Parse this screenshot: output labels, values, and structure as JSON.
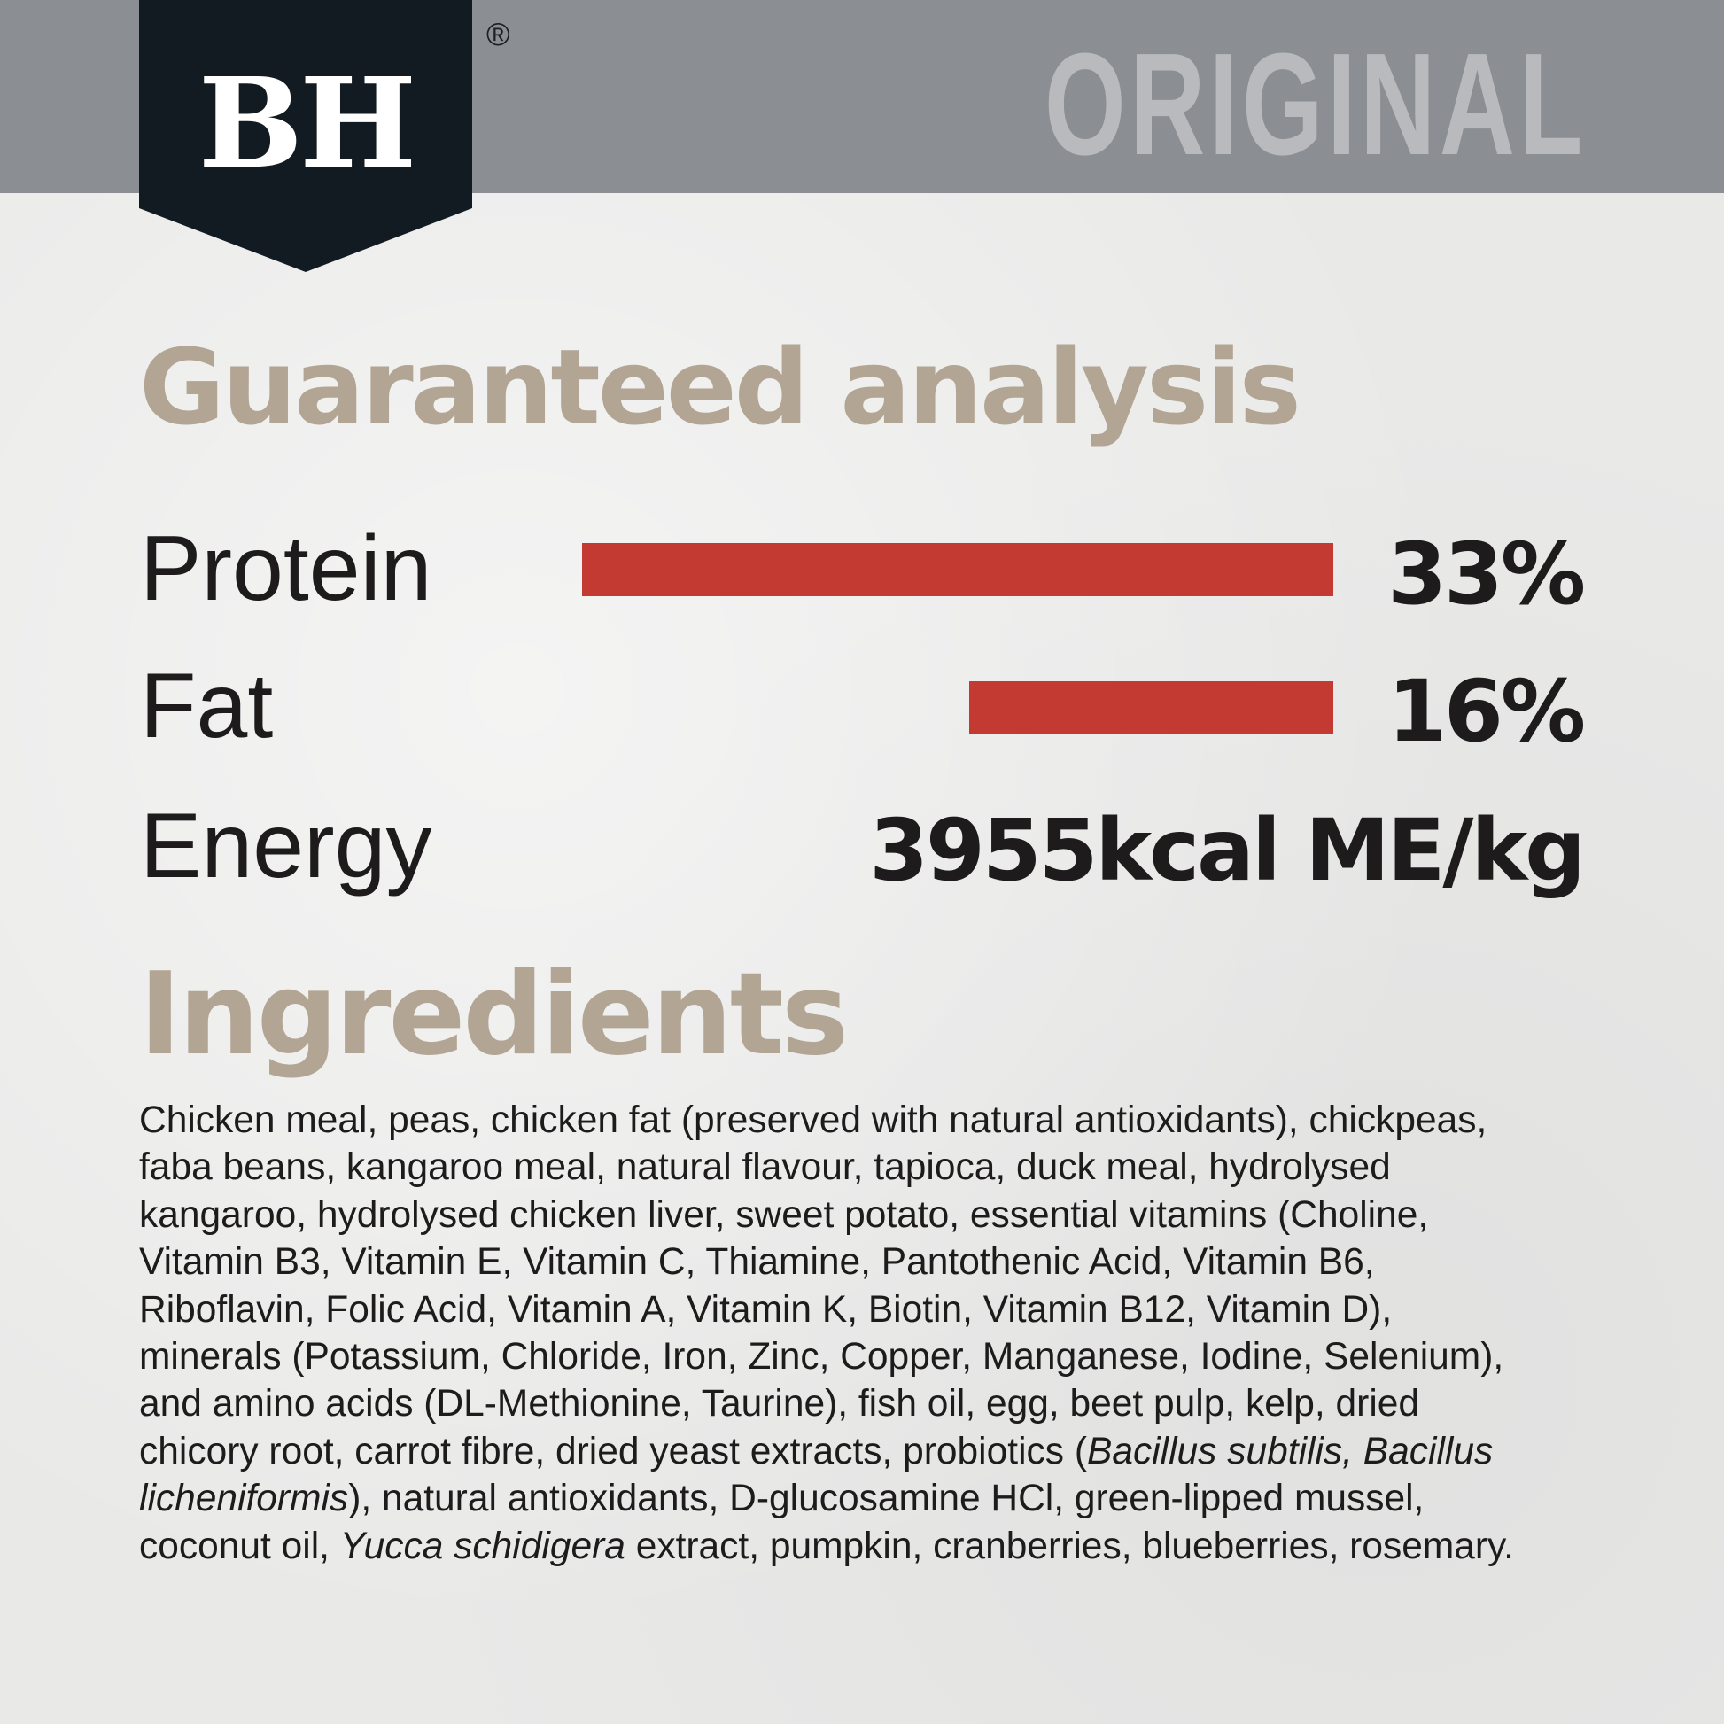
{
  "brand": {
    "logo_text": "BH",
    "registered_mark": "®",
    "variant": "ORIGINAL"
  },
  "colors": {
    "header_bg": "#8b8e92",
    "logo_bg": "#121b21",
    "heading": "#b3a594",
    "bar": "#c33a32",
    "text": "#1d1b1c"
  },
  "analysis": {
    "title": "Guaranteed analysis",
    "rows": [
      {
        "label": "Protein",
        "value": "33%"
      },
      {
        "label": "Fat",
        "value": "16%"
      },
      {
        "label": "Energy",
        "value": "3955kcal ME/kg"
      }
    ]
  },
  "chart_data": {
    "type": "bar",
    "orientation": "horizontal",
    "categories": [
      "Protein",
      "Fat"
    ],
    "values": [
      33,
      16
    ],
    "unit": "%",
    "title": "",
    "xlabel": "",
    "ylabel": ""
  },
  "ingredients": {
    "title": "Ingredients",
    "lines": [
      "Chicken meal, peas, chicken fat (preserved with natural antioxidants), chickpeas,",
      "faba beans, kangaroo meal, natural flavour, tapioca, duck meal, hydrolysed",
      "kangaroo, hydrolysed chicken liver, sweet potato, essential vitamins (Choline,",
      "Vitamin B3, Vitamin E, Vitamin C, Thiamine, Pantothenic Acid, Vitamin B6,",
      "Riboflavin, Folic Acid, Vitamin A, Vitamin K, Biotin, Vitamin B12, Vitamin D),",
      "minerals (Potassium, Chloride, Iron, Zinc, Copper, Manganese, Iodine, Selenium),",
      "and amino acids (DL-Methionine, Taurine), fish oil, egg, beet pulp, kelp, dried"
    ],
    "line8": {
      "a": "chicory root, carrot fibre, dried yeast extracts, probiotics (",
      "b_italic": "Bacillus subtilis, Bacillus"
    },
    "line9": {
      "a_italic": "licheniformis",
      "b": "), natural antioxidants, D-glucosamine HCl, green-lipped mussel,"
    },
    "line10": {
      "a": "coconut oil, ",
      "b_italic": "Yucca schidigera",
      "c": " extract, pumpkin, cranberries, blueberries, rosemary."
    }
  }
}
